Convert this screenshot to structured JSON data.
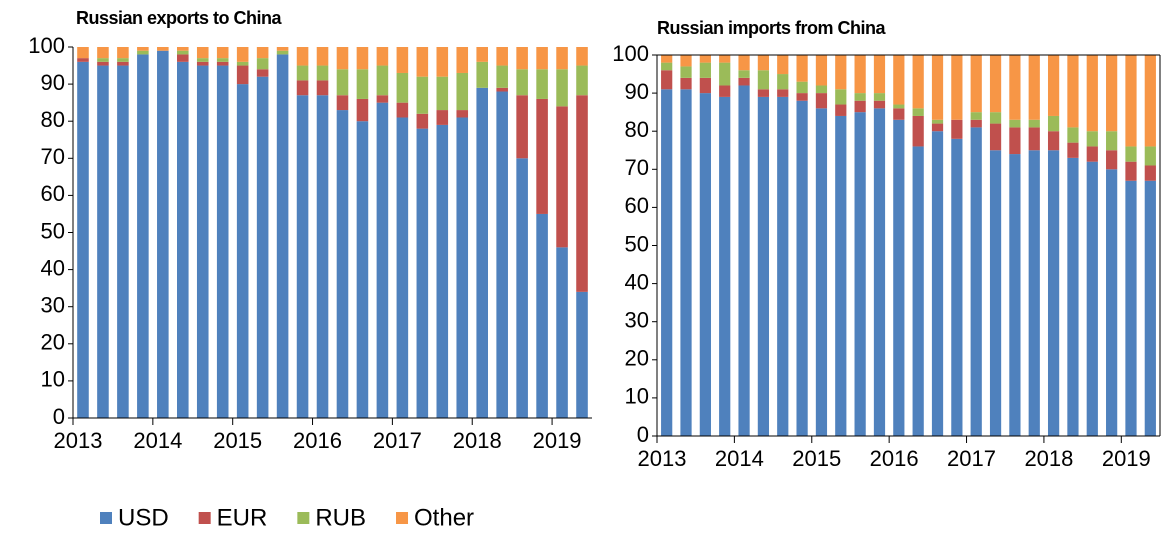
{
  "chart_data": [
    {
      "type": "bar",
      "stacked": true,
      "title": "Russian exports to China",
      "categories": [
        "2013",
        null,
        null,
        null,
        "2014",
        null,
        null,
        null,
        "2015",
        null,
        null,
        null,
        "2016",
        null,
        null,
        null,
        "2017",
        null,
        null,
        null,
        "2018",
        null,
        null,
        null,
        "2019",
        null
      ],
      "series": [
        {
          "name": "USD",
          "color": "#4f81bd",
          "values": [
            96,
            95,
            95,
            98,
            99,
            96,
            95,
            95,
            90,
            92,
            98,
            87,
            87,
            83,
            80,
            85,
            81,
            78,
            79,
            81,
            89,
            88,
            70,
            55,
            46,
            34
          ]
        },
        {
          "name": "EUR",
          "color": "#c0504d",
          "values": [
            1,
            1,
            1,
            0,
            0,
            2,
            1,
            1,
            5,
            2,
            0,
            4,
            4,
            4,
            6,
            2,
            4,
            4,
            4,
            2,
            0,
            1,
            17,
            31,
            38,
            53
          ]
        },
        {
          "name": "RUB",
          "color": "#9bbb59",
          "values": [
            0,
            1,
            1,
            1,
            0,
            1,
            1,
            1,
            1,
            3,
            1,
            4,
            4,
            7,
            8,
            8,
            8,
            10,
            9,
            10,
            7,
            6,
            7,
            8,
            10,
            8
          ]
        },
        {
          "name": "Other",
          "color": "#f79646",
          "values": [
            3,
            3,
            3,
            1,
            1,
            1,
            3,
            3,
            4,
            3,
            1,
            5,
            5,
            6,
            6,
            5,
            7,
            8,
            8,
            7,
            4,
            5,
            6,
            6,
            6,
            5
          ]
        }
      ],
      "ylim": [
        0,
        100
      ],
      "yticks": [
        0,
        10,
        20,
        30,
        40,
        50,
        60,
        70,
        80,
        90,
        100
      ],
      "legend": "bottom"
    },
    {
      "type": "bar",
      "stacked": true,
      "title": "Russian imports from China",
      "categories": [
        "2013",
        null,
        null,
        null,
        "2014",
        null,
        null,
        null,
        "2015",
        null,
        null,
        null,
        "2016",
        null,
        null,
        null,
        "2017",
        null,
        null,
        null,
        "2018",
        null,
        null,
        null,
        "2019",
        null
      ],
      "series": [
        {
          "name": "USD",
          "color": "#4f81bd",
          "values": [
            91,
            91,
            90,
            89,
            92,
            89,
            89,
            88,
            86,
            84,
            85,
            86,
            83,
            76,
            80,
            78,
            81,
            75,
            74,
            75,
            75,
            73,
            72,
            70,
            67,
            67
          ]
        },
        {
          "name": "EUR",
          "color": "#c0504d",
          "values": [
            5,
            3,
            4,
            3,
            2,
            2,
            2,
            2,
            4,
            3,
            3,
            2,
            3,
            8,
            2,
            5,
            2,
            7,
            7,
            6,
            5,
            4,
            4,
            5,
            5,
            4
          ]
        },
        {
          "name": "RUB",
          "color": "#9bbb59",
          "values": [
            2,
            3,
            4,
            6,
            2,
            5,
            4,
            3,
            2,
            4,
            2,
            2,
            1,
            2,
            1,
            0,
            2,
            3,
            2,
            2,
            4,
            4,
            4,
            5,
            4,
            5
          ]
        },
        {
          "name": "Other",
          "color": "#f79646",
          "values": [
            2,
            3,
            2,
            2,
            4,
            4,
            5,
            7,
            8,
            9,
            10,
            10,
            13,
            14,
            17,
            17,
            15,
            15,
            17,
            17,
            16,
            19,
            20,
            20,
            24,
            24
          ]
        }
      ],
      "ylim": [
        0,
        100
      ],
      "yticks": [
        0,
        10,
        20,
        30,
        40,
        50,
        60,
        70,
        80,
        90,
        100
      ],
      "frame": true
    }
  ]
}
